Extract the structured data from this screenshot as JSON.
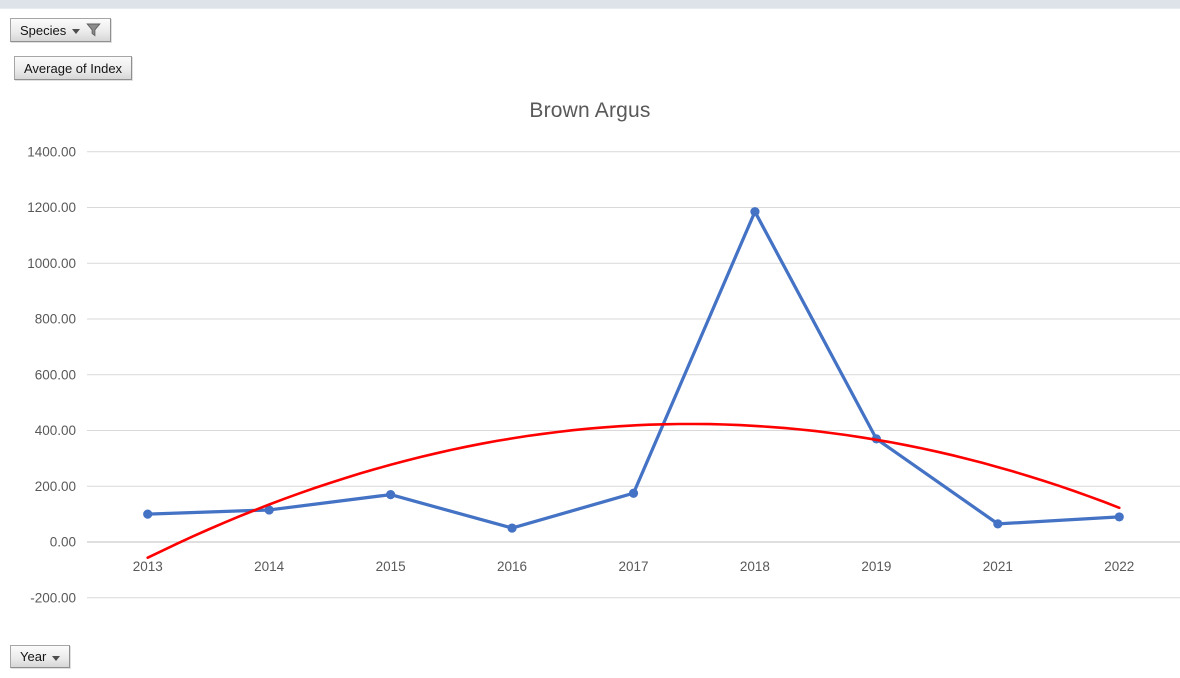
{
  "window": {
    "top_strip": "worksheet-edge"
  },
  "field_buttons": {
    "species": {
      "label": "Species",
      "state": "filtered"
    },
    "value": {
      "label": "Average of Index"
    },
    "axis": {
      "label": "Year"
    }
  },
  "chart_data": {
    "type": "line",
    "title": "Brown Argus",
    "categories": [
      "2013",
      "2014",
      "2015",
      "2016",
      "2017",
      "2018",
      "2019",
      "2021",
      "2022"
    ],
    "series": [
      {
        "name": "Average of Index",
        "color": "#4472C4",
        "marker": "circle",
        "values": [
          100,
          115,
          170,
          50,
          175,
          1185,
          370,
          65,
          90
        ]
      }
    ],
    "trendline": {
      "type": "polynomial",
      "order": 2,
      "color": "#FF0000",
      "applies_to": "Average of Index"
    },
    "y_axis": {
      "min": -200,
      "max": 1400,
      "step": 200,
      "tick_labels": [
        "1400.00",
        "1200.00",
        "1000.00",
        "800.00",
        "600.00",
        "400.00",
        "200.00",
        "0.00",
        "-200.00"
      ]
    },
    "x_axis": {
      "field": "Year"
    },
    "grid": true,
    "legend": "none",
    "colors": {
      "gridline": "#D9D9D9",
      "axis_line": "#BFBFBF",
      "tick_text": "#595959",
      "title_text": "#595959"
    }
  }
}
